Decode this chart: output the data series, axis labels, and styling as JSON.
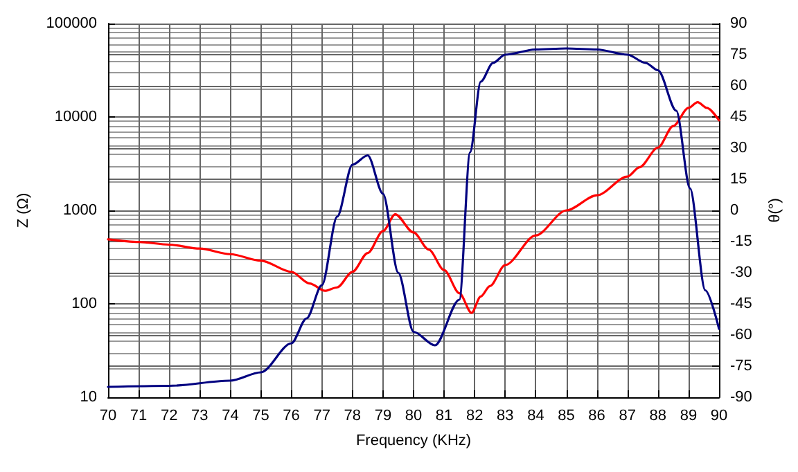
{
  "chart_data": {
    "type": "line",
    "xlabel": "Frequency (KHz)",
    "ylabel": "Z (Ω)",
    "y2label": "θ(°)",
    "xlim": [
      70,
      90
    ],
    "xticks": [
      70,
      71,
      72,
      73,
      74,
      75,
      76,
      77,
      78,
      79,
      80,
      81,
      82,
      83,
      84,
      85,
      86,
      87,
      88,
      89,
      90
    ],
    "ylim": [
      10,
      100000
    ],
    "yticks": [
      10,
      100,
      1000,
      10000,
      100000
    ],
    "log": "y",
    "y2lim": [
      -90,
      90
    ],
    "y2ticks": [
      -90,
      -75,
      -60,
      -45,
      -30,
      -15,
      0,
      15,
      30,
      45,
      60,
      75,
      90
    ],
    "grid": true,
    "marker": "none",
    "line_style": "solid",
    "series": [
      {
        "color": "#ff0000",
        "x": [
          70,
          71,
          72,
          73,
          74,
          75,
          76,
          76.6,
          77.1,
          77.5,
          78,
          78.5,
          79,
          79.4,
          80,
          80.5,
          81,
          81.5,
          81.9,
          82.2,
          82.5,
          83,
          84,
          85,
          86,
          87,
          87.4,
          88,
          88.5,
          89,
          89.3,
          89.6,
          90
        ],
        "values": [
          490,
          460,
          430,
          390,
          340,
          290,
          220,
          165,
          138,
          150,
          220,
          350,
          600,
          910,
          580,
          380,
          230,
          130,
          80,
          120,
          155,
          260,
          540,
          1000,
          1450,
          2300,
          2900,
          4700,
          8000,
          12500,
          14400,
          12500,
          9200
        ]
      },
      {
        "color": "#000080",
        "axis": "y2",
        "x": [
          70,
          72,
          74,
          75,
          76,
          76.5,
          77,
          77.5,
          78,
          78.5,
          79,
          79.5,
          80,
          80.7,
          81.5,
          81.85,
          82.2,
          82.6,
          83,
          84,
          85,
          86,
          87,
          87.6,
          88,
          88.6,
          89.05,
          89.55,
          90
        ],
        "values": [
          -85,
          -84.5,
          -82,
          -78,
          -64,
          -52,
          -36,
          -3,
          22,
          26.5,
          8,
          -30,
          -58.5,
          -65,
          -43,
          28,
          62,
          71,
          75,
          77.5,
          78,
          77.5,
          75,
          71,
          67.5,
          48,
          10.6,
          -38.5,
          -57
        ]
      }
    ]
  }
}
